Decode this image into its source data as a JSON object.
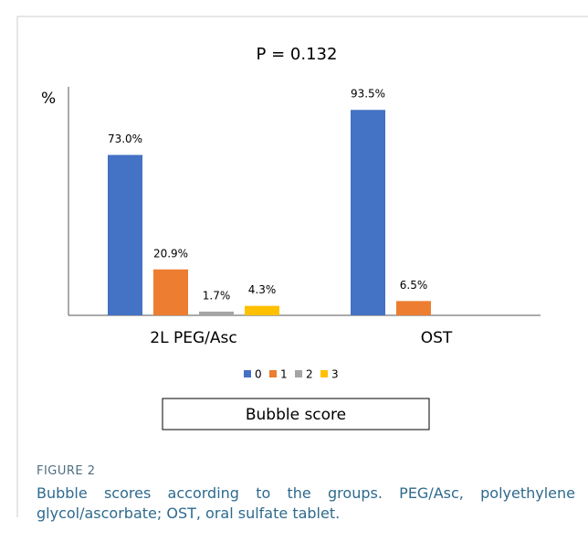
{
  "chart_data": {
    "type": "bar",
    "title": "P = 0.132",
    "ylabel": "%",
    "categories": [
      "2L PEG/Asc",
      "OST"
    ],
    "series": [
      {
        "name": "0",
        "color": "#4472c4",
        "values": [
          73.0,
          93.5
        ],
        "value_labels": [
          "73.0%",
          "93.5%"
        ]
      },
      {
        "name": "1",
        "color": "#ed7d31",
        "values": [
          20.9,
          6.5
        ],
        "value_labels": [
          "20.9%",
          "6.5%"
        ]
      },
      {
        "name": "2",
        "color": "#a5a5a5",
        "values": [
          1.7,
          null
        ],
        "value_labels": [
          "1.7%",
          null
        ]
      },
      {
        "name": "3",
        "color": "#ffc000",
        "values": [
          4.3,
          null
        ],
        "value_labels": [
          "4.3%",
          null
        ]
      }
    ],
    "ylim": [
      0,
      104
    ],
    "xlabel": "Bubble score"
  },
  "caption": {
    "label": "FIGURE 2",
    "text": "Bubble scores according to the groups. PEG/Asc, polyethylene glycol/ascorbate; OST, oral sulfate tablet."
  }
}
